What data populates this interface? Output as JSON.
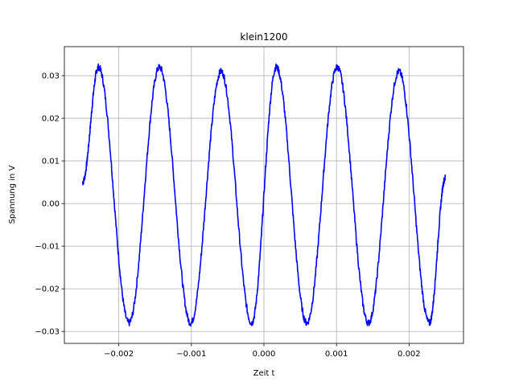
{
  "chart_data": {
    "type": "line",
    "title": "klein1200",
    "xlabel": "Zeit t",
    "ylabel": "Spannung in V",
    "xlim": [
      -0.00275,
      0.00275
    ],
    "ylim": [
      -0.0328,
      0.0368
    ],
    "x_ticks": [
      -0.002,
      -0.001,
      0.0,
      0.001,
      0.002
    ],
    "x_tick_labels": [
      "−0.002",
      "−0.001",
      "0.000",
      "0.001",
      "0.002"
    ],
    "y_ticks": [
      -0.03,
      -0.02,
      -0.01,
      0.0,
      0.01,
      0.02,
      0.03
    ],
    "y_tick_labels": [
      "−0.03",
      "−0.02",
      "−0.01",
      "0.00",
      "0.01",
      "0.02",
      "0.03"
    ],
    "grid": true,
    "series": [
      {
        "color": "#0000ff",
        "x": [
          -0.0025,
          -0.00228,
          -0.00186,
          -0.00144,
          -0.00101,
          -0.00059,
          -0.00017,
          0.00017,
          0.00059,
          0.00101,
          0.00144,
          0.00186,
          0.00228,
          0.0025
        ],
        "values": [
          0.005,
          0.032,
          -0.028,
          0.032,
          -0.028,
          0.031,
          -0.028,
          0.032,
          -0.028,
          0.032,
          -0.028,
          0.031,
          -0.028,
          0.006
        ]
      }
    ]
  }
}
